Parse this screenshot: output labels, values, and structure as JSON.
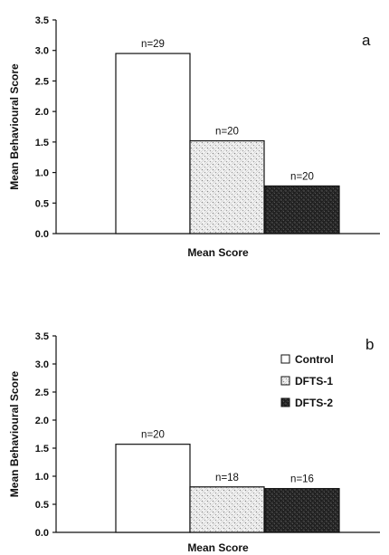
{
  "chart_data": [
    {
      "type": "bar",
      "panel": "a",
      "categories": [
        "Control",
        "DFTS-1",
        "DFTS-2"
      ],
      "values": [
        2.95,
        1.52,
        0.78
      ],
      "annotations": [
        "n=29",
        "n=20",
        "n=20"
      ],
      "xlabel": "Mean Score",
      "ylabel": "Mean Behavioural Score",
      "ylim": [
        0,
        3.5
      ],
      "yticks": [
        "0.0",
        "0.5",
        "1.0",
        "1.5",
        "2.0",
        "2.5",
        "3.0",
        "3.5"
      ],
      "grid": false,
      "legend": null
    },
    {
      "type": "bar",
      "panel": "b",
      "categories": [
        "Control",
        "DFTS-1",
        "DFTS-2"
      ],
      "values": [
        1.57,
        0.81,
        0.78
      ],
      "annotations": [
        "n=20",
        "n=18",
        "n=16"
      ],
      "xlabel": "Mean Score",
      "ylabel": "Mean Behavioural Score",
      "ylim": [
        0,
        3.5
      ],
      "yticks": [
        "0.0",
        "0.5",
        "1.0",
        "1.5",
        "2.0",
        "2.5",
        "3.0",
        "3.5"
      ],
      "grid": false,
      "legend": {
        "placement": "top-right",
        "entries": [
          "Control",
          "DFTS-1",
          "DFTS-2"
        ]
      }
    }
  ],
  "styles": {
    "bar_fills": [
      "#ffffff",
      "#e4e4e4",
      "#2a2a2a"
    ],
    "axis_color": "#111111"
  }
}
